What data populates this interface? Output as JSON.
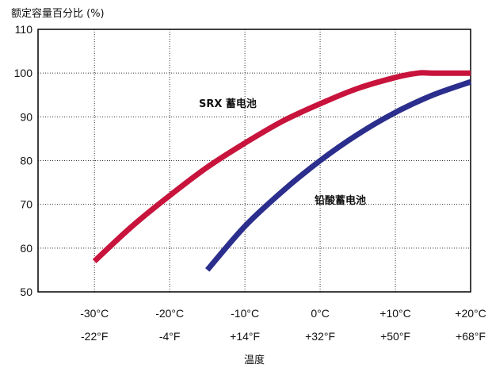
{
  "chart_data": {
    "type": "line",
    "ylabel": "额定容量百分比 (%)",
    "xlabel": "温度",
    "ylim": [
      50,
      110
    ],
    "yticks": [
      "50",
      "60",
      "70",
      "80",
      "90",
      "100",
      "110"
    ],
    "xlim": [
      -37.5,
      20
    ],
    "xticks_c": [
      "-30°C",
      "-20°C",
      "-10°C",
      "0°C",
      "+10°C",
      "+20°C"
    ],
    "xticks_f": [
      "-22°F",
      "-4°F",
      "+14°F",
      "+32°F",
      "+50°F",
      "+68°F"
    ],
    "grid": true,
    "series": [
      {
        "name": "SRX 蓄电池",
        "color": "#c8143c",
        "x": [
          -30,
          -25,
          -20,
          -15,
          -10,
          -5,
          0,
          5,
          10,
          13,
          15,
          20
        ],
        "y": [
          57,
          65,
          72,
          78.5,
          84,
          89,
          93,
          96.5,
          99,
          100,
          100,
          100
        ]
      },
      {
        "name": "铅酸蓄电池",
        "color": "#2b2e8c",
        "x": [
          -15,
          -10,
          -5,
          0,
          5,
          10,
          15,
          20
        ],
        "y": [
          55,
          65,
          73,
          80,
          86,
          91,
          95,
          98
        ]
      }
    ]
  }
}
